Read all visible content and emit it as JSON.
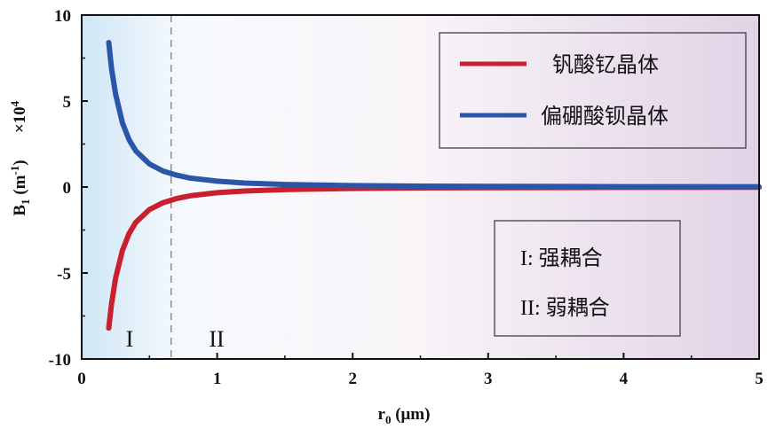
{
  "chart_data": {
    "type": "line",
    "xlabel_main": "r",
    "xlabel_sub": "0",
    "xlabel_unit": " (μm)",
    "ylabel_main": "B",
    "ylabel_sub": "1",
    "ylabel_unit_pre": " (m",
    "ylabel_unit_sup": "-1",
    "ylabel_unit_post": ")",
    "scale_prefix": "×10",
    "scale_exp": "4",
    "xlim": [
      0,
      5
    ],
    "ylim": [
      -10,
      10
    ],
    "x_ticks": [
      "0",
      "1",
      "2",
      "3",
      "4",
      "5"
    ],
    "y_ticks": [
      "10",
      "5",
      "0",
      "-5",
      "-10"
    ],
    "series": [
      {
        "name": "钒酸钇晶体",
        "color": "#c8202f",
        "x": [
          0.2,
          0.22,
          0.25,
          0.3,
          0.35,
          0.4,
          0.5,
          0.6,
          0.7,
          0.8,
          1.0,
          1.2,
          1.5,
          2.0,
          2.5,
          3.0,
          3.5,
          4.0,
          4.5,
          5.0
        ],
        "y": [
          -8.2,
          -6.8,
          -5.3,
          -3.7,
          -2.7,
          -2.05,
          -1.31,
          -0.91,
          -0.67,
          -0.51,
          -0.33,
          -0.23,
          -0.15,
          -0.08,
          -0.05,
          -0.04,
          -0.03,
          -0.02,
          -0.02,
          -0.01
        ]
      },
      {
        "name": "偏硼酸钡晶体",
        "color": "#2b55a8",
        "x": [
          0.2,
          0.22,
          0.25,
          0.3,
          0.35,
          0.4,
          0.5,
          0.6,
          0.7,
          0.8,
          1.0,
          1.2,
          1.5,
          2.0,
          2.5,
          3.0,
          3.5,
          4.0,
          4.5,
          5.0
        ],
        "y": [
          8.4,
          6.9,
          5.4,
          3.75,
          2.75,
          2.1,
          1.34,
          0.93,
          0.69,
          0.52,
          0.34,
          0.23,
          0.15,
          0.08,
          0.05,
          0.04,
          0.03,
          0.02,
          0.02,
          0.01
        ]
      }
    ],
    "threshold_x": 0.66,
    "regions": [
      "I",
      "II"
    ],
    "annotation_lines": [
      "I:  强耦合",
      "II: 弱耦合"
    ],
    "legend_position": "top-right"
  }
}
